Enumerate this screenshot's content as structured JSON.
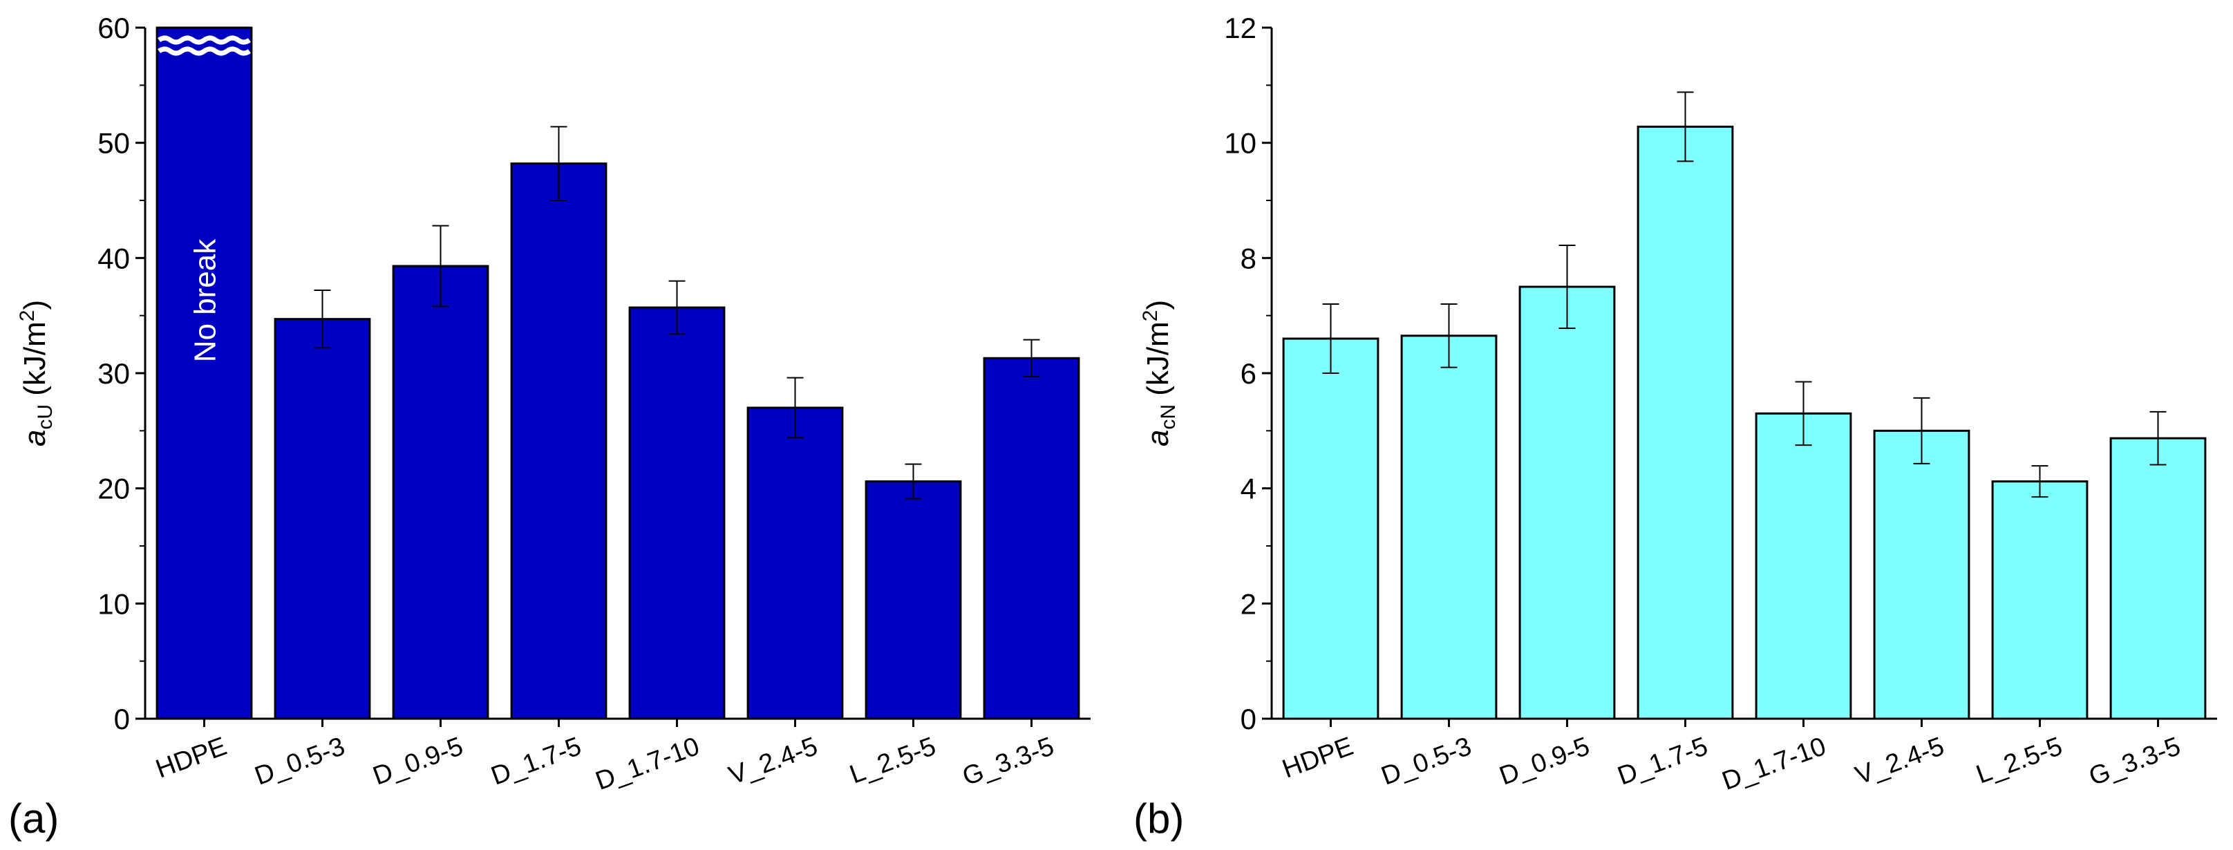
{
  "chart_data": [
    {
      "type": "bar",
      "panel_label": "(a)",
      "ylabel": {
        "base": "a",
        "sub": "cU",
        "unit_pre": " (kJ/m",
        "unit_sup": "2",
        "unit_post": ")"
      },
      "xlabel": "",
      "ylim": [
        0,
        60
      ],
      "yticks": [
        0,
        10,
        20,
        30,
        40,
        50,
        60
      ],
      "categories": [
        "HDPE",
        "D_0.5-3",
        "D_0.9-5",
        "D_1.7-5",
        "D_1.7-10",
        "V_2.4-5",
        "L_2.5-5",
        "G_3.3-5"
      ],
      "values": [
        60,
        34.7,
        39.3,
        48.2,
        35.7,
        27.0,
        20.6,
        31.3
      ],
      "errors": [
        null,
        2.5,
        3.5,
        3.2,
        2.3,
        2.6,
        1.5,
        1.6
      ],
      "bar_color": "#0000C0",
      "annotation": {
        "category": "HDPE",
        "text": "No break"
      },
      "grid": false
    },
    {
      "type": "bar",
      "panel_label": "(b)",
      "ylabel": {
        "base": "a",
        "sub": "cN",
        "unit_pre": " (kJ/m",
        "unit_sup": "2",
        "unit_post": ")"
      },
      "xlabel": "",
      "ylim": [
        0,
        12
      ],
      "yticks": [
        0,
        2,
        4,
        6,
        8,
        10,
        12
      ],
      "categories": [
        "HDPE",
        "D_0.5-3",
        "D_0.9-5",
        "D_1.7-5",
        "D_1.7-10",
        "V_2.4-5",
        "L_2.5-5",
        "G_3.3-5"
      ],
      "values": [
        6.6,
        6.65,
        7.5,
        10.28,
        5.3,
        5.0,
        4.12,
        4.87
      ],
      "errors": [
        0.6,
        0.55,
        0.72,
        0.6,
        0.55,
        0.57,
        0.27,
        0.46
      ],
      "bar_color": "#7FFFFF",
      "grid": false
    }
  ]
}
